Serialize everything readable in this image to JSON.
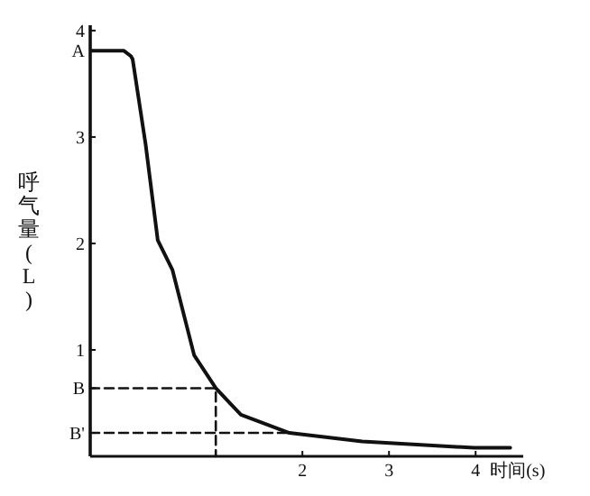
{
  "chart_data": {
    "type": "line",
    "xlabel": "时间(s)",
    "ylabel": "呼气量(L)",
    "xlim": [
      -0.45,
      4.55
    ],
    "ylim": [
      0,
      4.05
    ],
    "xticks": [
      2,
      3,
      4
    ],
    "yticks": [
      4,
      {
        "value": 3.81,
        "label": "A"
      },
      3,
      2,
      1,
      {
        "value": 0.64,
        "label": "B"
      },
      {
        "value": 0.22,
        "label": "B'"
      }
    ],
    "series": [
      {
        "color": "#111111",
        "line_style": "solid",
        "x": [
          -0.44,
          -0.06,
          0.02,
          0.04,
          0.19,
          0.33,
          0.5,
          0.75,
          1.0,
          1.29,
          1.85,
          2.69,
          3.98,
          4.4
        ],
        "values": [
          3.81,
          3.81,
          3.76,
          3.73,
          2.93,
          2.03,
          1.75,
          0.95,
          0.64,
          0.39,
          0.22,
          0.14,
          0.08,
          0.08
        ]
      },
      {
        "color": "#111111",
        "line_style": "dashed",
        "x": [
          -0.45,
          1.0,
          1.0
        ],
        "values": [
          0.64,
          0.64,
          0
        ]
      },
      {
        "color": "#111111",
        "line_style": "dashed",
        "x": [
          -0.45,
          1.85
        ],
        "values": [
          0.22,
          0.22
        ]
      }
    ]
  }
}
